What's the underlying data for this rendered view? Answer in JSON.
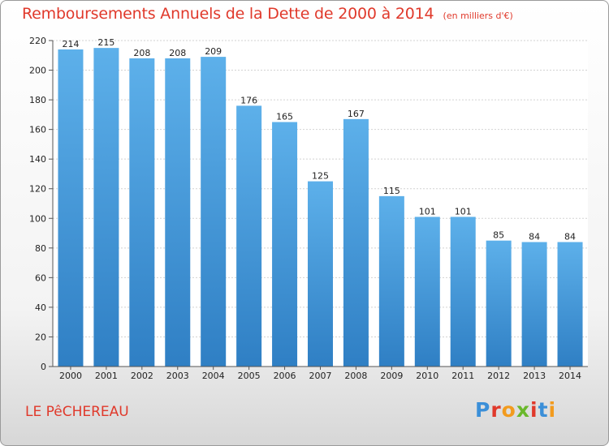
{
  "chart_data": {
    "type": "bar",
    "title": "Remboursements Annuels de la Dette de 2000 à 2014",
    "subtitle": "(en milliers d'€)",
    "xlabel": "",
    "ylabel": "",
    "categories": [
      "2000",
      "2001",
      "2002",
      "2003",
      "2004",
      "2005",
      "2006",
      "2007",
      "2008",
      "2009",
      "2010",
      "2011",
      "2012",
      "2013",
      "2014"
    ],
    "values": [
      214,
      215,
      208,
      208,
      209,
      176,
      165,
      125,
      167,
      115,
      101,
      101,
      85,
      84,
      84
    ],
    "ylim": [
      0,
      220
    ],
    "yticks": [
      0,
      20,
      40,
      60,
      80,
      100,
      120,
      140,
      160,
      180,
      200,
      220
    ],
    "grid": true,
    "bar_color": "#4a9fe0"
  },
  "footer": {
    "commune": "LE PêCHEREAU",
    "logo_text": "Proxiti"
  },
  "colors": {
    "title": "#e0392b",
    "logo_letters": [
      "#3b8fd8",
      "#e0392b",
      "#f29b1e",
      "#6ab82c",
      "#e0392b",
      "#3b8fd8",
      "#f29b1e"
    ]
  }
}
